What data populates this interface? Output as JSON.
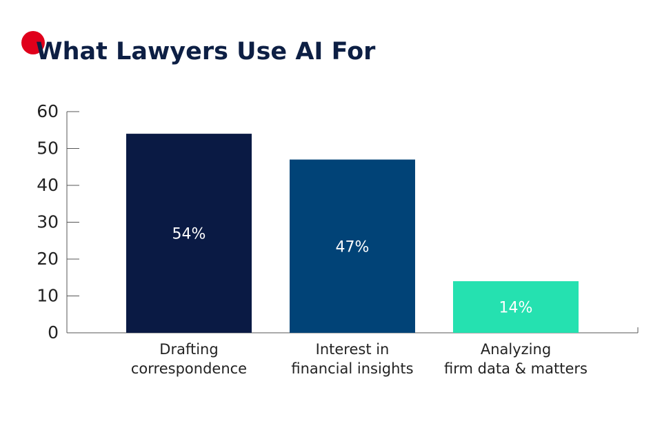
{
  "chart_data": {
    "type": "bar",
    "title": "What Lawyers Use AI For",
    "categories": [
      "Drafting\ncorrespondence",
      "Interest in\nfinancial insights",
      "Analyzing\nfirm data & matters"
    ],
    "values": [
      54,
      47,
      14
    ],
    "value_labels": [
      "54%",
      "47%",
      "14%"
    ],
    "colors": [
      "#0a1a44",
      "#014377",
      "#25e1b0"
    ],
    "ylim": [
      0,
      60
    ],
    "yticks": [
      0,
      10,
      20,
      30,
      40,
      50,
      60
    ],
    "grid": false
  }
}
